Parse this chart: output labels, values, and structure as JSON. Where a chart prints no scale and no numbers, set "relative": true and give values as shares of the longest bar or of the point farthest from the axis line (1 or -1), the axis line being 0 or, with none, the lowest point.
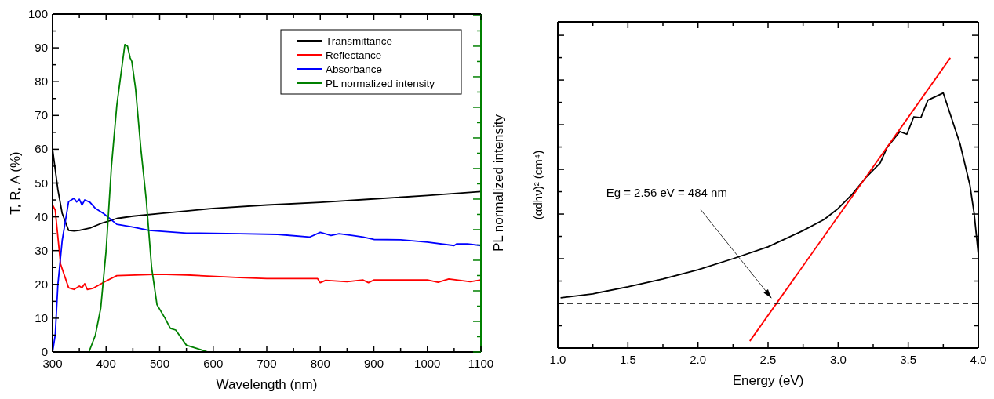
{
  "chart_data": [
    {
      "type": "line",
      "xlabel": "Wavelength (nm)",
      "ylabel": "T, R, A (%)",
      "y2label": "PL normalized intensity",
      "xlim": [
        300,
        1100
      ],
      "xticks": [
        300,
        400,
        500,
        600,
        700,
        800,
        900,
        1000,
        1100
      ],
      "ylim": [
        0,
        100
      ],
      "yticks": [
        0,
        10,
        20,
        30,
        40,
        50,
        60,
        70,
        80,
        90,
        100
      ],
      "legend": "top right",
      "grid": false,
      "series": [
        {
          "name": "Transmittance",
          "color": "#000000",
          "x": [
            300,
            310,
            318,
            330,
            340,
            350,
            370,
            390,
            420,
            450,
            500,
            600,
            700,
            800,
            900,
            1000,
            1100
          ],
          "values": [
            60,
            48,
            41,
            36,
            35.8,
            36,
            36.7,
            38,
            39.5,
            40.2,
            41,
            42.5,
            43.5,
            44.3,
            45.3,
            46.3,
            47.5
          ]
        },
        {
          "name": "Reflectance",
          "color": "#ff0000",
          "x": [
            300,
            305,
            315,
            330,
            340,
            350,
            355,
            360,
            365,
            375,
            400,
            420,
            500,
            550,
            650,
            700,
            795,
            800,
            810,
            850,
            880,
            890,
            900,
            1000,
            1020,
            1040,
            1060,
            1080,
            1100
          ],
          "values": [
            43.5,
            42,
            26,
            19,
            18.5,
            19.5,
            19,
            20.2,
            18.5,
            18.8,
            21,
            22.6,
            23,
            22.8,
            22,
            21.7,
            21.7,
            20.5,
            21.2,
            20.8,
            21.3,
            20.5,
            21.3,
            21.3,
            20.6,
            21.6,
            21.2,
            20.8,
            21.3
          ]
        },
        {
          "name": "Absorbance",
          "color": "#0000ff",
          "x": [
            300,
            305,
            310,
            318,
            330,
            340,
            345,
            350,
            355,
            360,
            370,
            380,
            395,
            420,
            450,
            480,
            550,
            650,
            720,
            780,
            800,
            820,
            835,
            860,
            880,
            900,
            950,
            1000,
            1050,
            1055,
            1075,
            1100
          ],
          "values": [
            0,
            5,
            20,
            33,
            44.5,
            45.5,
            44.4,
            45.2,
            43.5,
            45,
            44.3,
            42.5,
            41,
            37.8,
            37,
            36,
            35.2,
            35,
            34.8,
            34,
            35.4,
            34.5,
            35,
            34.5,
            34,
            33.3,
            33.2,
            32.5,
            31.5,
            32,
            32,
            31.5
          ]
        },
        {
          "name": "PL normalized intensity",
          "color": "#008000",
          "x": [
            368,
            380,
            390,
            400,
            410,
            420,
            430,
            435,
            440,
            445,
            448,
            455,
            465,
            475,
            485,
            495,
            510,
            520,
            530,
            550,
            570,
            590
          ],
          "values": [
            0,
            5,
            13,
            30,
            55,
            73,
            85,
            91,
            90.5,
            87,
            86,
            78,
            60,
            45,
            25,
            14,
            10,
            7,
            6.5,
            2,
            1,
            0
          ]
        }
      ]
    },
    {
      "type": "line",
      "xlabel": "Energy (eV)",
      "ylabel": "(αdhν)² (cm⁴)",
      "relative": true,
      "tick_labels": "x",
      "xlim": [
        1,
        4
      ],
      "xticks": [
        {
          "value": 1,
          "label": "1.0"
        },
        {
          "value": 1.5,
          "label": "1.5"
        },
        {
          "value": 2,
          "label": "2.0"
        },
        {
          "value": 2.5,
          "label": "2.5"
        },
        {
          "value": 3,
          "label": "3.0"
        },
        {
          "value": 3.5,
          "label": "3.5"
        },
        {
          "value": 4,
          "label": "4.0"
        }
      ],
      "grid": false,
      "legend": false,
      "ref_lines": [
        {
          "axis": "y",
          "value": 0.1535,
          "color": "#000000",
          "line_style": "dashed"
        }
      ],
      "annotations": [
        "Eg = 2.56 eV = 484 nm"
      ],
      "series": [
        {
          "color": "#000000",
          "x": [
            1.02,
            1.25,
            1.5,
            1.75,
            2.0,
            2.25,
            2.5,
            2.75,
            2.9,
            3.0,
            3.1,
            3.2,
            3.3,
            3.35,
            3.44,
            3.49,
            3.54,
            3.59,
            3.64,
            3.75,
            3.87,
            3.94,
            3.97,
            4.0
          ],
          "values": [
            0.173,
            0.187,
            0.211,
            0.238,
            0.27,
            0.308,
            0.349,
            0.405,
            0.443,
            0.481,
            0.53,
            0.589,
            0.638,
            0.692,
            0.746,
            0.737,
            0.797,
            0.794,
            0.854,
            0.879,
            0.703,
            0.562,
            0.465,
            0.324
          ]
        },
        {
          "type": "line",
          "color": "#ff0000",
          "x": [
            2.37,
            3.8
          ],
          "values": [
            0.024,
            1
          ]
        }
      ]
    }
  ]
}
